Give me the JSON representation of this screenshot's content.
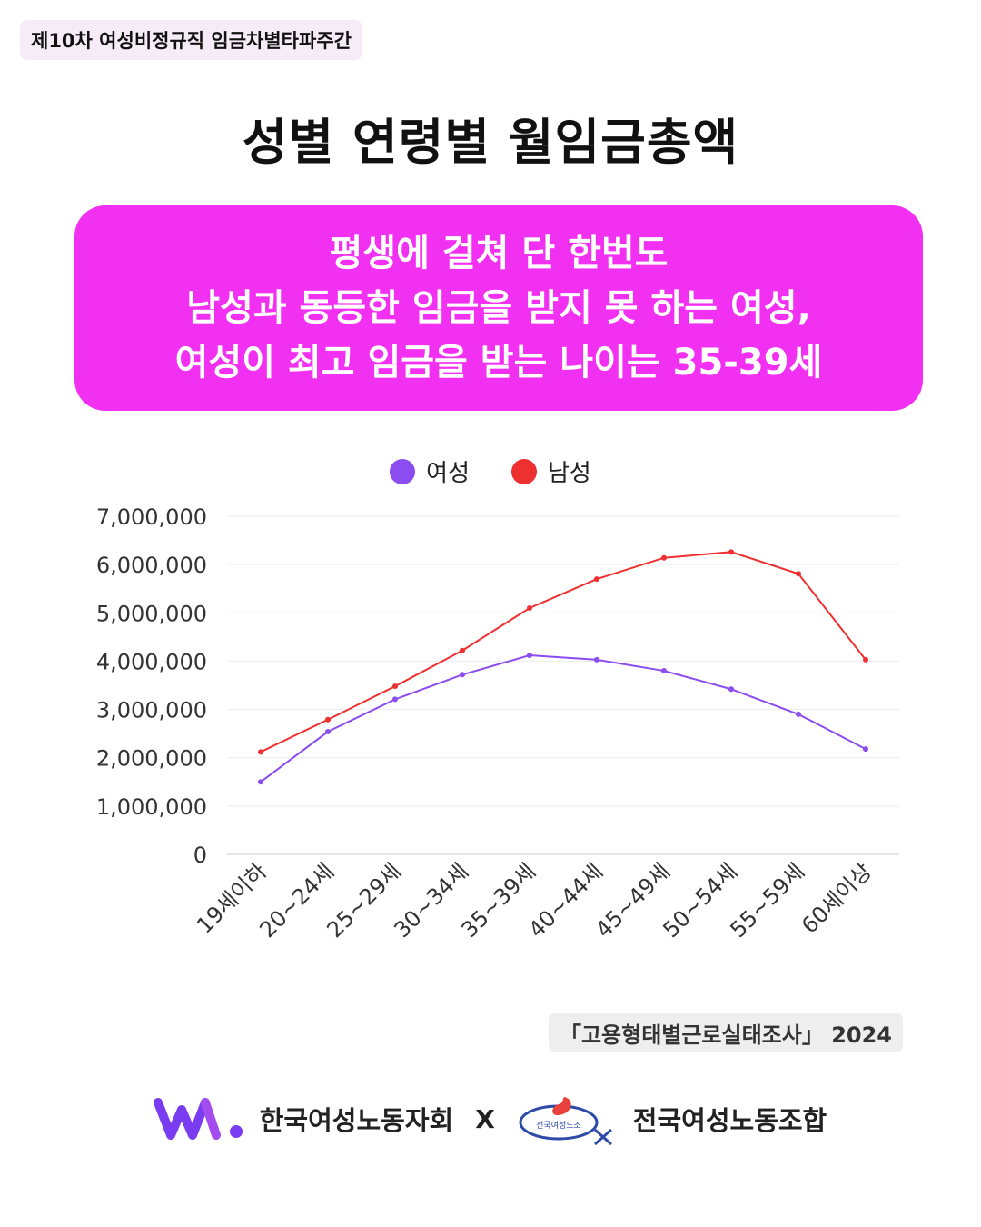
{
  "tag": "제10차 여성비정규직 임금차별타파주간",
  "title": "성별 연령별 월임금총액",
  "headline": {
    "line1": "평생에 걸쳐 단 한번도",
    "line2": "남성과 동등한 임금을 받지 못 하는 여성,",
    "line3": "여성이 최고 임금을 받는 나이는 35-39세"
  },
  "source": "「고용형태별근로실태조사」 2024",
  "footer": {
    "org1": "한국여성노동자회",
    "x": "X",
    "logo2_text": "전국여성노조",
    "org2": "전국여성노동조합"
  },
  "colors": {
    "accent": "#f230f2",
    "women": "#8b4cf0",
    "men": "#ee3030"
  },
  "chart_data": {
    "type": "line",
    "categories": [
      "19세이하",
      "20~24세",
      "25~29세",
      "30~34세",
      "35~39세",
      "40~44세",
      "45~49세",
      "50~54세",
      "55~59세",
      "60세이상"
    ],
    "series": [
      {
        "name": "여성",
        "color": "#8b4cf0",
        "values": [
          1500000,
          2540000,
          3210000,
          3720000,
          4120000,
          4030000,
          3800000,
          3420000,
          2900000,
          2180000
        ]
      },
      {
        "name": "남성",
        "color": "#ee3030",
        "values": [
          2120000,
          2790000,
          3480000,
          4220000,
          5100000,
          5700000,
          6140000,
          6260000,
          5810000,
          4030000
        ]
      }
    ],
    "ylim": [
      0,
      7000000
    ],
    "yticks": [
      "0",
      "1,000,000",
      "2,000,000",
      "3,000,000",
      "4,000,000",
      "5,000,000",
      "6,000,000",
      "7,000,000"
    ],
    "ytick_values": [
      0,
      1000000,
      2000000,
      3000000,
      4000000,
      5000000,
      6000000,
      7000000
    ],
    "grid": true,
    "legend_position": "top-center"
  }
}
